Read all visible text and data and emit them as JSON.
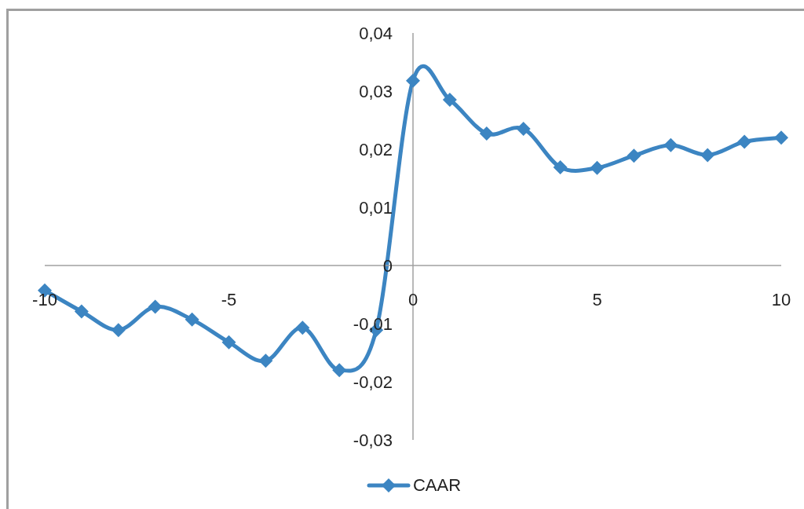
{
  "chart_data": {
    "type": "line",
    "x": [
      -10,
      -9,
      -8,
      -7,
      -6,
      -5,
      -4,
      -3,
      -2,
      -1,
      0,
      1,
      2,
      3,
      4,
      5,
      6,
      7,
      8,
      9,
      10
    ],
    "series": [
      {
        "name": "CAAR",
        "color": "#3c85c2",
        "values": [
          -0.0043,
          -0.0079,
          -0.0111,
          -0.0071,
          -0.0093,
          -0.0132,
          -0.0164,
          -0.0107,
          -0.018,
          -0.0111,
          0.0318,
          0.0285,
          0.0227,
          0.0235,
          0.0169,
          0.0168,
          0.0189,
          0.0207,
          0.019,
          0.0213,
          0.022
        ]
      }
    ],
    "xlim": [
      -10,
      10
    ],
    "xticks": [
      -10,
      -5,
      0,
      5,
      10
    ],
    "ylim": [
      -0.03,
      0.04
    ],
    "yticks": [
      {
        "value": -0.03,
        "label": "-0,03"
      },
      {
        "value": -0.02,
        "label": "-0,02"
      },
      {
        "value": -0.01,
        "label": "-0,01"
      },
      0,
      {
        "value": 0.01,
        "label": "0,01"
      },
      {
        "value": 0.02,
        "label": "0,02"
      },
      {
        "value": 0.03,
        "label": "0,03"
      },
      {
        "value": 0.04,
        "label": "0,04"
      }
    ],
    "legend": "bottom",
    "marker": "diamond",
    "line_style": "solid"
  }
}
